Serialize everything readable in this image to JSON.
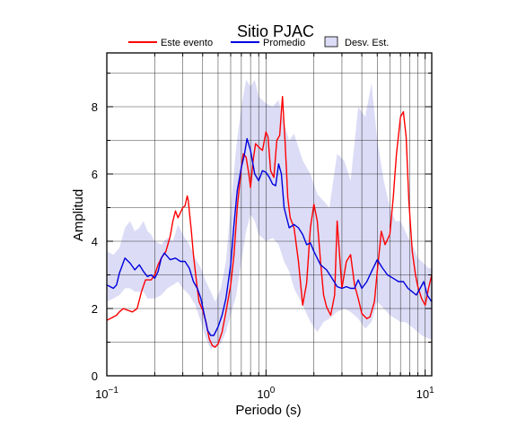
{
  "chart_data": {
    "type": "line",
    "title": "Sitio PJAC",
    "xlabel": "Periodo (s)",
    "ylabel": "Amplitud",
    "xscale": "log",
    "xlim": [
      0.1,
      11
    ],
    "ylim": [
      0,
      9.6
    ],
    "x_tick_labels": [
      {
        "value": 0.1,
        "label": "10",
        "exp": "−1"
      },
      {
        "value": 1,
        "label": "10",
        "exp": "0"
      },
      {
        "value": 10,
        "label": "10",
        "exp": "1"
      }
    ],
    "y_ticks": [
      0,
      2,
      4,
      6,
      8
    ],
    "grid": true,
    "legend_position": "top",
    "legend": [
      {
        "label": "Este evento",
        "kind": "line",
        "color": "#ff0000"
      },
      {
        "label": "Promedio",
        "kind": "line",
        "color": "#0000dd"
      },
      {
        "label": "Desv. Est.",
        "kind": "band",
        "color": "#dcdcf6"
      }
    ],
    "series": [
      {
        "name": "Este evento",
        "color": "#ff0000",
        "x": [
          0.1,
          0.105,
          0.11,
          0.115,
          0.12,
          0.127,
          0.135,
          0.145,
          0.155,
          0.165,
          0.175,
          0.19,
          0.2,
          0.21,
          0.22,
          0.235,
          0.25,
          0.26,
          0.27,
          0.28,
          0.29,
          0.3,
          0.31,
          0.32,
          0.325,
          0.33,
          0.34,
          0.35,
          0.36,
          0.37,
          0.38,
          0.4,
          0.42,
          0.44,
          0.46,
          0.48,
          0.5,
          0.53,
          0.56,
          0.6,
          0.63,
          0.66,
          0.7,
          0.72,
          0.75,
          0.78,
          0.8,
          0.83,
          0.86,
          0.9,
          0.95,
          1.0,
          1.03,
          1.07,
          1.12,
          1.17,
          1.22,
          1.27,
          1.32,
          1.37,
          1.42,
          1.5,
          1.6,
          1.7,
          1.8,
          1.9,
          2.0,
          2.1,
          2.2,
          2.3,
          2.4,
          2.55,
          2.7,
          2.8,
          2.9,
          3.0,
          3.2,
          3.4,
          3.6,
          3.8,
          4.0,
          4.3,
          4.5,
          4.8,
          5.0,
          5.3,
          5.6,
          6.0,
          6.3,
          6.6,
          7.0,
          7.3,
          7.6,
          7.9,
          8.3,
          8.7,
          9.0,
          9.5,
          10.0,
          10.5,
          11.0
        ],
        "y": [
          1.65,
          1.7,
          1.75,
          1.8,
          1.9,
          2.0,
          1.95,
          1.9,
          2.0,
          2.5,
          2.85,
          2.85,
          3.0,
          3.3,
          3.5,
          3.7,
          4.15,
          4.6,
          4.9,
          4.7,
          4.85,
          5.0,
          5.05,
          5.35,
          5.2,
          4.9,
          4.3,
          3.6,
          3.1,
          2.6,
          2.2,
          1.95,
          1.6,
          1.1,
          0.9,
          0.85,
          0.95,
          1.3,
          1.9,
          2.7,
          3.6,
          5.0,
          6.2,
          6.6,
          6.5,
          6.0,
          5.6,
          6.4,
          6.9,
          6.8,
          6.7,
          7.25,
          7.1,
          6.1,
          5.9,
          7.0,
          7.15,
          8.3,
          6.9,
          5.3,
          4.7,
          4.4,
          3.4,
          2.1,
          2.75,
          4.4,
          5.1,
          4.6,
          3.4,
          2.4,
          2.05,
          1.8,
          2.4,
          4.6,
          3.6,
          2.6,
          3.4,
          3.6,
          2.7,
          2.3,
          1.85,
          1.7,
          1.75,
          2.2,
          3.1,
          4.3,
          3.9,
          4.2,
          5.3,
          6.6,
          7.7,
          7.85,
          7.1,
          5.2,
          3.7,
          3.0,
          2.65,
          2.3,
          2.1,
          2.6,
          3.0
        ]
      },
      {
        "name": "Promedio",
        "color": "#0000dd",
        "x": [
          0.1,
          0.105,
          0.11,
          0.115,
          0.12,
          0.13,
          0.14,
          0.15,
          0.16,
          0.17,
          0.18,
          0.19,
          0.2,
          0.21,
          0.22,
          0.23,
          0.25,
          0.27,
          0.29,
          0.31,
          0.33,
          0.35,
          0.37,
          0.39,
          0.41,
          0.43,
          0.45,
          0.47,
          0.5,
          0.53,
          0.56,
          0.6,
          0.63,
          0.66,
          0.7,
          0.73,
          0.76,
          0.8,
          0.85,
          0.9,
          0.95,
          1.0,
          1.05,
          1.1,
          1.15,
          1.2,
          1.25,
          1.3,
          1.4,
          1.5,
          1.6,
          1.7,
          1.8,
          1.9,
          2.0,
          2.2,
          2.4,
          2.6,
          2.8,
          3.0,
          3.2,
          3.4,
          3.6,
          3.8,
          4.0,
          4.3,
          4.6,
          5.0,
          5.4,
          5.8,
          6.3,
          6.8,
          7.3,
          7.8,
          8.3,
          8.8,
          9.3,
          9.8,
          10.3,
          11.0
        ],
        "y": [
          2.7,
          2.65,
          2.6,
          2.7,
          3.05,
          3.5,
          3.35,
          3.15,
          3.3,
          3.1,
          2.95,
          3.0,
          2.9,
          3.1,
          3.5,
          3.65,
          3.45,
          3.5,
          3.4,
          3.4,
          3.2,
          2.8,
          2.6,
          2.3,
          1.8,
          1.35,
          1.2,
          1.2,
          1.45,
          1.8,
          2.3,
          3.3,
          4.5,
          5.5,
          6.2,
          6.55,
          7.05,
          6.7,
          6.0,
          5.8,
          6.1,
          6.05,
          5.9,
          5.7,
          5.65,
          6.3,
          6.0,
          5.0,
          4.4,
          4.5,
          4.4,
          4.2,
          3.9,
          3.95,
          3.7,
          3.3,
          3.15,
          2.9,
          2.65,
          2.6,
          2.65,
          2.6,
          2.6,
          2.85,
          2.6,
          2.8,
          3.1,
          3.45,
          3.2,
          3.0,
          2.9,
          2.8,
          2.8,
          2.6,
          2.5,
          2.4,
          2.6,
          2.8,
          2.4,
          2.2
        ]
      }
    ],
    "band": {
      "name": "Desv. Est.",
      "color": "#dcdcf6",
      "x": [
        0.1,
        0.11,
        0.12,
        0.13,
        0.14,
        0.15,
        0.16,
        0.17,
        0.18,
        0.19,
        0.2,
        0.22,
        0.24,
        0.26,
        0.28,
        0.3,
        0.33,
        0.36,
        0.39,
        0.42,
        0.45,
        0.48,
        0.52,
        0.56,
        0.6,
        0.65,
        0.7,
        0.75,
        0.8,
        0.85,
        0.9,
        1.0,
        1.1,
        1.2,
        1.3,
        1.4,
        1.5,
        1.7,
        1.9,
        2.1,
        2.3,
        2.5,
        2.8,
        3.1,
        3.4,
        3.8,
        4.2,
        4.6,
        5.0,
        5.5,
        6.0,
        6.5,
        7.0,
        7.5,
        8.0,
        8.5,
        9.0,
        9.5,
        10.0,
        10.5,
        11.0
      ],
      "upper": [
        3.7,
        3.6,
        3.8,
        4.4,
        4.6,
        4.3,
        4.4,
        4.6,
        4.3,
        4.2,
        4.0,
        3.9,
        4.1,
        4.0,
        4.5,
        4.2,
        3.9,
        3.5,
        3.2,
        2.8,
        2.5,
        2.2,
        2.6,
        3.4,
        5.0,
        6.8,
        8.0,
        8.8,
        8.6,
        8.8,
        8.3,
        8.1,
        8.0,
        8.2,
        7.5,
        7.0,
        7.2,
        6.4,
        6.0,
        5.4,
        5.2,
        5.0,
        6.6,
        6.4,
        5.8,
        8.0,
        7.7,
        8.7,
        7.0,
        5.8,
        5.0,
        4.6,
        4.6,
        4.3,
        4.0,
        3.8,
        3.5,
        3.4,
        3.3,
        3.2,
        3.2
      ],
      "lower": [
        2.2,
        2.3,
        2.4,
        2.6,
        2.6,
        2.5,
        2.5,
        2.5,
        2.3,
        2.3,
        2.3,
        2.4,
        2.6,
        2.7,
        2.8,
        2.6,
        2.4,
        2.1,
        1.6,
        1.1,
        0.8,
        0.85,
        0.95,
        1.3,
        1.8,
        2.4,
        3.4,
        4.3,
        4.8,
        4.6,
        4.2,
        4.0,
        4.1,
        3.9,
        3.4,
        3.1,
        2.6,
        2.1,
        1.6,
        1.3,
        1.6,
        1.7,
        1.9,
        2.0,
        1.9,
        1.7,
        1.4,
        1.6,
        2.2,
        2.0,
        1.8,
        1.7,
        1.6,
        1.6,
        1.5,
        1.4,
        1.3,
        1.2,
        1.15,
        1.1,
        1.1
      ]
    }
  }
}
